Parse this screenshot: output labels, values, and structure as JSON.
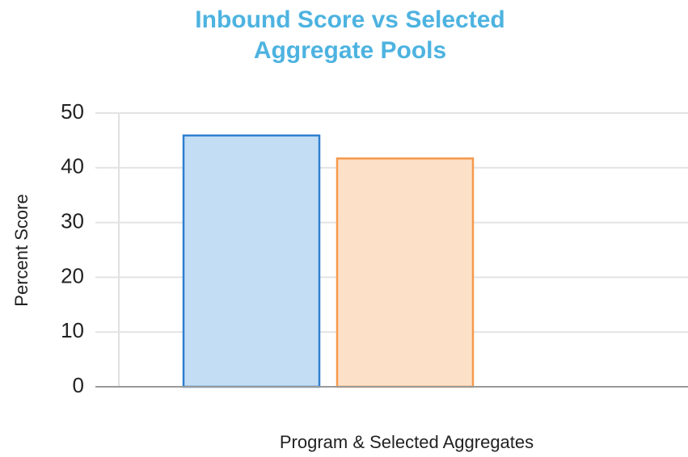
{
  "chart_data": {
    "type": "bar",
    "title": "Inbound Score vs Selected Aggregate Pools",
    "x_label": "Program & Selected Aggregates",
    "y_label": "Percent Score",
    "categories": [
      null,
      null
    ],
    "values": [
      45.9,
      41.7
    ],
    "colors": [
      "#c3ddf5",
      "#fde0c8"
    ],
    "edge_colors": [
      "#2f7fd0",
      "#f59a4c"
    ],
    "ylim": [
      0,
      50
    ],
    "yticks": [
      0,
      10,
      20,
      30,
      40,
      50
    ],
    "grid": true
  }
}
